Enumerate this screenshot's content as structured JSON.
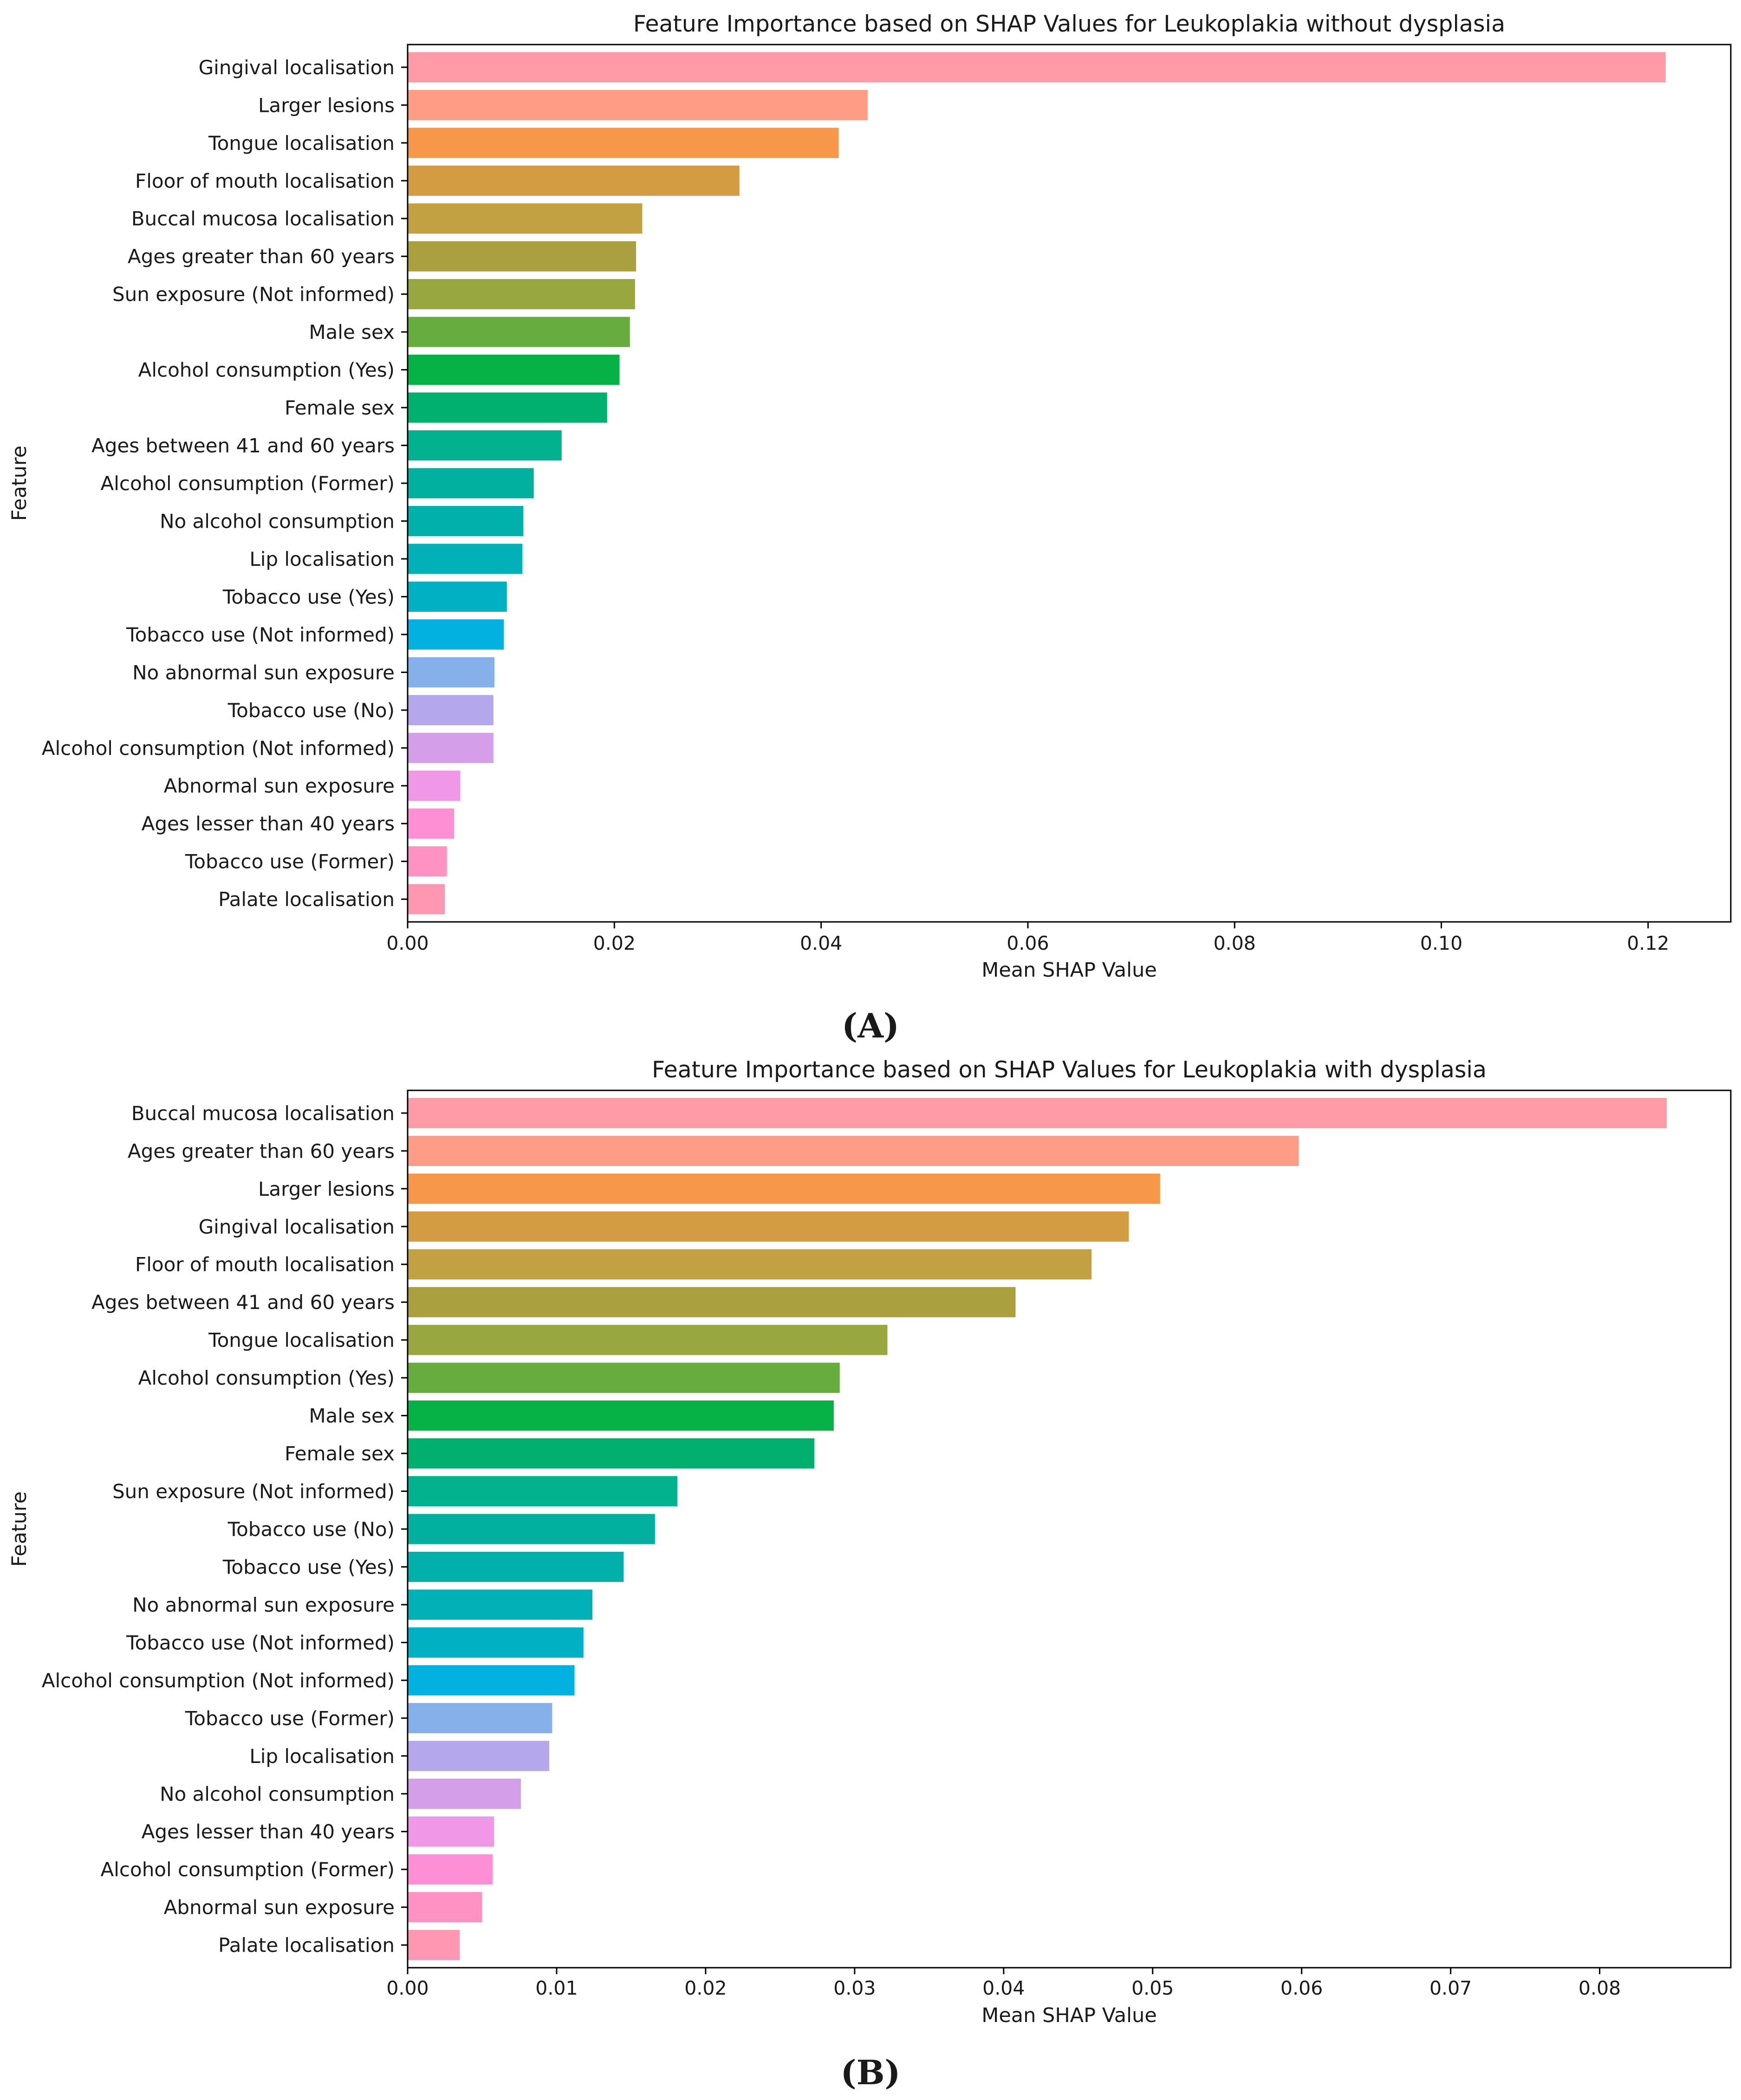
{
  "palette": [
    "#ff9aa6",
    "#ff9c86",
    "#f6974a",
    "#d49c42",
    "#c1a142",
    "#aba03f",
    "#98a73f",
    "#67ac3f",
    "#06b245",
    "#01b06f",
    "#02b18e",
    "#01b09e",
    "#02b0ab",
    "#02b0b7",
    "#02b0c3",
    "#02b1df",
    "#86b0e9",
    "#b4a7ec",
    "#d49ee8",
    "#f098e7",
    "#ff8fd5",
    "#ff92c2",
    "#ff97b3"
  ],
  "chart_data": [
    {
      "type": "bar",
      "orientation": "horizontal",
      "panel_label": "(A)",
      "title": "Feature Importance based on SHAP Values for Leukoplakia without dysplasia",
      "xlabel": "Mean SHAP Value",
      "ylabel": "Feature",
      "xlim": [
        0,
        0.128
      ],
      "xticks": [
        0.0,
        0.02,
        0.04,
        0.06,
        0.08,
        0.1,
        0.12
      ],
      "xtick_labels": [
        "0.00",
        "0.02",
        "0.04",
        "0.06",
        "0.08",
        "0.10",
        "0.12"
      ],
      "grid": false,
      "categories": [
        "Gingival localisation",
        "Larger lesions",
        "Tongue localisation",
        "Floor of mouth localisation",
        "Buccal mucosa localisation",
        "Ages greater than 60 years",
        "Sun exposure (Not informed)",
        "Male sex",
        "Alcohol consumption (Yes)",
        "Female sex",
        "Ages between 41 and 60 years",
        "Alcohol consumption (Former)",
        "No alcohol consumption",
        "Lip localisation",
        "Tobacco use (Yes)",
        "Tobacco use (Not informed)",
        "No abnormal sun exposure",
        "Tobacco use (No)",
        "Alcohol consumption (Not informed)",
        "Abnormal sun exposure",
        "Ages lesser than 40 years",
        "Tobacco use (Former)",
        "Palate localisation"
      ],
      "values": [
        0.1217,
        0.0445,
        0.0417,
        0.0321,
        0.0227,
        0.0221,
        0.022,
        0.0215,
        0.0205,
        0.0193,
        0.0149,
        0.0122,
        0.0112,
        0.0111,
        0.0096,
        0.0093,
        0.0084,
        0.0083,
        0.0083,
        0.0051,
        0.0045,
        0.0038,
        0.0036
      ]
    },
    {
      "type": "bar",
      "orientation": "horizontal",
      "panel_label": "(B)",
      "title": "Feature Importance based on SHAP Values for Leukoplakia with dysplasia",
      "xlabel": "Mean SHAP Value",
      "ylabel": "Feature",
      "xlim": [
        0,
        0.0888
      ],
      "xticks": [
        0.0,
        0.01,
        0.02,
        0.03,
        0.04,
        0.05,
        0.06,
        0.07,
        0.08
      ],
      "xtick_labels": [
        "0.00",
        "0.01",
        "0.02",
        "0.03",
        "0.04",
        "0.05",
        "0.06",
        "0.07",
        "0.08"
      ],
      "grid": false,
      "categories": [
        "Buccal mucosa localisation",
        "Ages greater than 60 years",
        "Larger lesions",
        "Gingival localisation",
        "Floor of mouth localisation",
        "Ages between 41 and 60 years",
        "Tongue localisation",
        "Alcohol consumption (Yes)",
        "Male sex",
        "Female sex",
        "Sun exposure (Not informed)",
        "Tobacco use (No)",
        "Tobacco use (Yes)",
        "No abnormal sun exposure",
        "Tobacco use (Not informed)",
        "Alcohol consumption (Not informed)",
        "Tobacco use (Former)",
        "Lip localisation",
        "No alcohol consumption",
        "Ages lesser than 40 years",
        "Alcohol consumption (Former)",
        "Abnormal sun exposure",
        "Palate localisation"
      ],
      "values": [
        0.0845,
        0.0598,
        0.0505,
        0.0484,
        0.0459,
        0.0408,
        0.0322,
        0.029,
        0.0286,
        0.0273,
        0.0181,
        0.0166,
        0.0145,
        0.0124,
        0.0118,
        0.0112,
        0.0097,
        0.0095,
        0.0076,
        0.0058,
        0.0057,
        0.005,
        0.0035
      ]
    }
  ]
}
